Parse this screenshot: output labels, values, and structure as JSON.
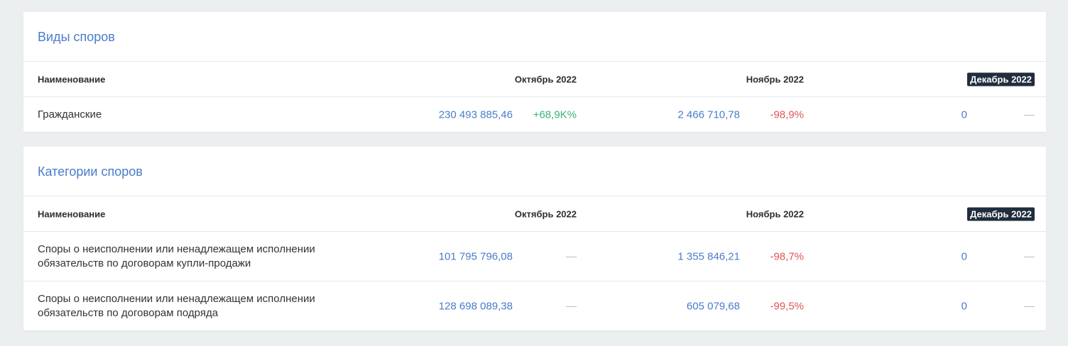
{
  "sections": [
    {
      "title": "Виды споров",
      "table": {
        "columns": [
          "Наименование",
          "Октябрь 2022",
          "Ноябрь 2022",
          "Декабрь 2022"
        ],
        "rows": [
          {
            "name": "Гражданские",
            "cells": [
              {
                "value": "230 493 885,46",
                "change": "+68,9K%"
              },
              {
                "value": "2 466 710,78",
                "change": "-98,9%"
              },
              {
                "value": "0",
                "change": "—"
              }
            ]
          }
        ]
      }
    },
    {
      "title": "Категории споров",
      "table": {
        "columns": [
          "Наименование",
          "Октябрь 2022",
          "Ноябрь 2022",
          "Декабрь 2022"
        ],
        "rows": [
          {
            "name": "Споры о неисполнении или ненадлежащем исполнении обязательств по договорам купли-продажи",
            "cells": [
              {
                "value": "101 795 796,08",
                "change": "—"
              },
              {
                "value": "1 355 846,21",
                "change": "-98,7%"
              },
              {
                "value": "0",
                "change": "—"
              }
            ]
          },
          {
            "name": "Споры о неисполнении или ненадлежащем исполнении обязательств по договорам подряда",
            "cells": [
              {
                "value": "128 698 089,38",
                "change": "—"
              },
              {
                "value": "605 079,68",
                "change": "-99,5%"
              },
              {
                "value": "0",
                "change": "—"
              }
            ]
          }
        ]
      }
    }
  ]
}
